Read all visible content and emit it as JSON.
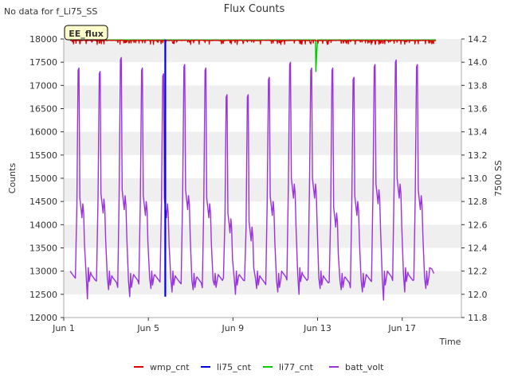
{
  "corner_note": "No data for f_Li75_SS",
  "badge": "EE_flux",
  "chart_data": {
    "type": "line",
    "title": "Flux Counts",
    "xlabel": "Time",
    "ylabel": "Counts",
    "y2label": "7500 SS",
    "xlim": [
      0.0,
      18.8
    ],
    "ylim": [
      12000,
      18000
    ],
    "y2lim": [
      11.8,
      14.2
    ],
    "x_ticks": [
      {
        "x": 0,
        "label": "Jun 1"
      },
      {
        "x": 4,
        "label": "Jun 5"
      },
      {
        "x": 8,
        "label": "Jun 9"
      },
      {
        "x": 12,
        "label": "Jun 13"
      },
      {
        "x": 16,
        "label": "Jun 17"
      }
    ],
    "y_ticks": [
      12000,
      12500,
      13000,
      13500,
      14000,
      14500,
      15000,
      15500,
      16000,
      16500,
      17000,
      17500,
      18000
    ],
    "y2_ticks": [
      11.8,
      12.0,
      12.2,
      12.4,
      12.6,
      12.8,
      13.0,
      13.2,
      13.4,
      13.6,
      13.8,
      14.0,
      14.2
    ],
    "grid": "horizontal bands",
    "legend_position": "bottom",
    "series": [
      {
        "name": "wmp_cnt",
        "color": "#dd0000",
        "axis": "left",
        "baseline": 17975,
        "dip_min": 17880,
        "x_range": [
          0.3,
          17.6
        ]
      },
      {
        "name": "li75_cnt",
        "color": "#0000dd",
        "axis": "left",
        "points": [
          [
            4.8,
            17990
          ],
          [
            4.8,
            12450
          ]
        ]
      },
      {
        "name": "li77_cnt",
        "color": "#00cc00",
        "axis": "left",
        "points": [
          [
            0.3,
            17980
          ],
          [
            11.9,
            17980
          ],
          [
            11.92,
            17300
          ],
          [
            11.96,
            17700
          ],
          [
            12.0,
            17980
          ],
          [
            17.6,
            17980
          ]
        ]
      },
      {
        "name": "batt_volt",
        "color": "#9933dd",
        "axis": "right",
        "days": [
          {
            "start": 0.3,
            "low": 12.15,
            "high": 13.95,
            "mid": 12.78,
            "min": 11.96
          },
          {
            "start": 1.3,
            "low": 12.12,
            "high": 13.92,
            "mid": 12.82,
            "min": 12.04
          },
          {
            "start": 2.3,
            "low": 12.1,
            "high": 14.04,
            "mid": 12.85,
            "min": 11.98
          },
          {
            "start": 3.3,
            "low": 12.12,
            "high": 13.95,
            "mid": 12.8,
            "min": 12.05
          },
          {
            "start": 4.3,
            "low": 12.12,
            "high": 13.9,
            "mid": 12.78,
            "min": 12.02
          },
          {
            "start": 5.3,
            "low": 12.1,
            "high": 13.98,
            "mid": 12.85,
            "min": 12.04
          },
          {
            "start": 6.3,
            "low": 12.1,
            "high": 13.95,
            "mid": 12.78,
            "min": 12.08
          },
          {
            "start": 7.3,
            "low": 12.12,
            "high": 13.72,
            "mid": 12.65,
            "min": 12.0
          },
          {
            "start": 8.3,
            "low": 12.12,
            "high": 13.72,
            "mid": 12.58,
            "min": 12.05
          },
          {
            "start": 9.3,
            "low": 12.1,
            "high": 13.87,
            "mid": 12.8,
            "min": 12.02
          },
          {
            "start": 10.3,
            "low": 12.15,
            "high": 14.0,
            "mid": 12.95,
            "min": 12.0
          },
          {
            "start": 11.3,
            "low": 12.12,
            "high": 13.95,
            "mid": 12.95,
            "min": 12.05
          },
          {
            "start": 12.3,
            "low": 12.1,
            "high": 13.95,
            "mid": 12.7,
            "min": 12.04
          },
          {
            "start": 13.3,
            "low": 12.1,
            "high": 13.87,
            "mid": 12.8,
            "min": 12.02
          },
          {
            "start": 14.3,
            "low": 12.12,
            "high": 13.98,
            "mid": 12.9,
            "min": 11.95
          },
          {
            "start": 15.3,
            "low": 12.15,
            "high": 14.02,
            "mid": 12.95,
            "min": 12.02
          },
          {
            "start": 16.3,
            "low": 12.12,
            "high": 13.98,
            "mid": 12.85,
            "min": 12.05
          },
          {
            "start": 17.3,
            "low": 12.18,
            "high": 12.25,
            "mid": 12.22,
            "min": 12.18
          }
        ]
      }
    ]
  }
}
